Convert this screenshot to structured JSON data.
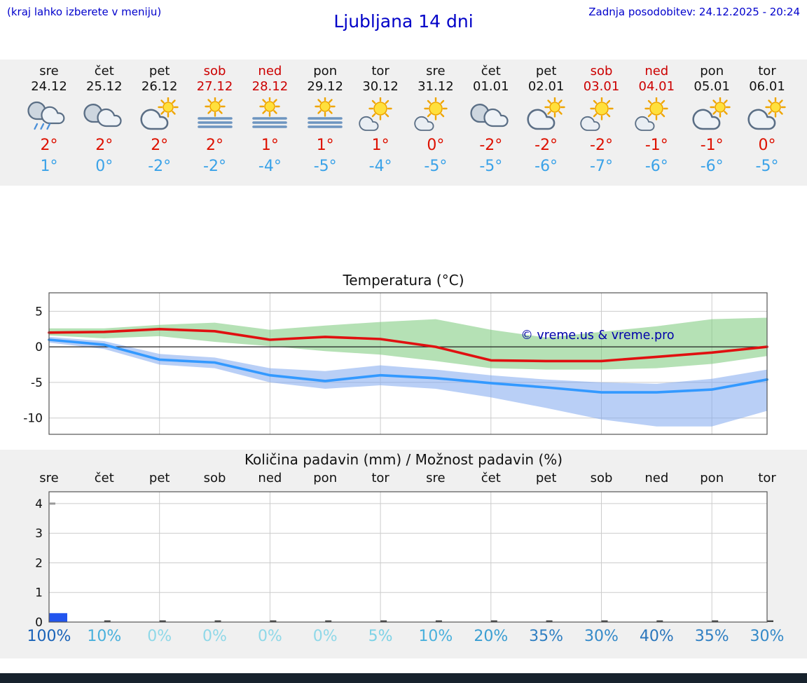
{
  "header": {
    "hint": "(kraj lahko izberete v meniju)",
    "title": "Ljubljana 14 dni",
    "last_update": "Zadnja posodobitev: 24.12.2025 - 20:24"
  },
  "colors": {
    "header_blue": "#0000cc",
    "weekend_red": "#cc0000",
    "weekday_black": "#111111",
    "tmax_red": "#dd1100",
    "tmin_blue": "#3aa2e8",
    "bar_blue": "#2255ee",
    "watermark_blue": "#0000aa"
  },
  "forecast_days": [
    {
      "day": "sre",
      "date": "24.12",
      "weekend": false,
      "icon": "rain",
      "tmax": "2°",
      "tmin": "1°"
    },
    {
      "day": "čet",
      "date": "25.12",
      "weekend": false,
      "icon": "cloudy",
      "tmax": "2°",
      "tmin": "0°"
    },
    {
      "day": "pet",
      "date": "26.12",
      "weekend": false,
      "icon": "partly",
      "tmax": "2°",
      "tmin": "-2°"
    },
    {
      "day": "sob",
      "date": "27.12",
      "weekend": true,
      "icon": "fog-sun",
      "tmax": "2°",
      "tmin": "-2°"
    },
    {
      "day": "ned",
      "date": "28.12",
      "weekend": true,
      "icon": "fog-sun",
      "tmax": "1°",
      "tmin": "-4°"
    },
    {
      "day": "pon",
      "date": "29.12",
      "weekend": false,
      "icon": "fog-sun",
      "tmax": "1°",
      "tmin": "-5°"
    },
    {
      "day": "tor",
      "date": "30.12",
      "weekend": false,
      "icon": "sun-cloud",
      "tmax": "1°",
      "tmin": "-4°"
    },
    {
      "day": "sre",
      "date": "31.12",
      "weekend": false,
      "icon": "sun-cloud",
      "tmax": "0°",
      "tmin": "-5°"
    },
    {
      "day": "čet",
      "date": "01.01",
      "weekend": false,
      "icon": "cloudy",
      "tmax": "-2°",
      "tmin": "-5°"
    },
    {
      "day": "pet",
      "date": "02.01",
      "weekend": false,
      "icon": "partly",
      "tmax": "-2°",
      "tmin": "-6°"
    },
    {
      "day": "sob",
      "date": "03.01",
      "weekend": true,
      "icon": "sun-cloud",
      "tmax": "-2°",
      "tmin": "-7°"
    },
    {
      "day": "ned",
      "date": "04.01",
      "weekend": true,
      "icon": "sun-cloud",
      "tmax": "-1°",
      "tmin": "-6°"
    },
    {
      "day": "pon",
      "date": "05.01",
      "weekend": false,
      "icon": "partly",
      "tmax": "-1°",
      "tmin": "-6°"
    },
    {
      "day": "tor",
      "date": "06.01",
      "weekend": false,
      "icon": "partly",
      "tmax": "0°",
      "tmin": "-5°"
    }
  ],
  "chart_data": [
    {
      "type": "line",
      "title": "Temperatura (°C)",
      "categories": [
        "sre",
        "čet",
        "pet",
        "sob",
        "ned",
        "pon",
        "tor",
        "sre",
        "čet",
        "pet",
        "sob",
        "ned",
        "pon",
        "tor"
      ],
      "series": [
        {
          "name": "max-temperature",
          "color": "#e01010",
          "values": [
            2,
            2.1,
            2.5,
            2.2,
            1,
            1.4,
            1.1,
            0,
            -1.9,
            -2,
            -2,
            -1.4,
            -0.8,
            0
          ]
        },
        {
          "name": "min-temperature",
          "color": "#3399ff",
          "values": [
            1,
            0.3,
            -1.8,
            -2.2,
            -4,
            -4.8,
            -4,
            -4.4,
            -5.1,
            -5.7,
            -6.4,
            -6.4,
            -6,
            -4.6
          ]
        }
      ],
      "bands": [
        {
          "name": "max-range",
          "color": "#79c879",
          "opacity": 0.55,
          "upper": [
            2.6,
            2.6,
            3.1,
            3.4,
            2.4,
            3,
            3.5,
            3.9,
            2.4,
            1.3,
            2.1,
            2.9,
            3.9,
            4.1
          ],
          "lower": [
            1.6,
            1.2,
            1.5,
            0.7,
            0.1,
            -0.6,
            -1.1,
            -2,
            -3,
            -3.2,
            -3.2,
            -3,
            -2.4,
            -1.3
          ]
        },
        {
          "name": "min-range",
          "color": "#7fa8ee",
          "opacity": 0.55,
          "upper": [
            1.4,
            0.8,
            -1,
            -1.5,
            -3,
            -3.4,
            -2.6,
            -3.2,
            -4,
            -4.6,
            -5,
            -5.2,
            -4.5,
            -3.2
          ],
          "lower": [
            0.6,
            -0.3,
            -2.5,
            -3,
            -5,
            -5.9,
            -5.4,
            -5.9,
            -7.1,
            -8.6,
            -10.2,
            -11.2,
            -11.2,
            -9
          ]
        }
      ],
      "ylim": [
        -12.3,
        7.6
      ],
      "yticks": [
        5,
        0,
        -5,
        -10
      ],
      "grid": true,
      "watermark": "© vreme.us & vreme.pro"
    },
    {
      "type": "bar",
      "title": "Količina padavin (mm) / Možnost padavin (%)",
      "categories": [
        "sre",
        "čet",
        "pet",
        "sob",
        "ned",
        "pon",
        "tor",
        "sre",
        "čet",
        "pet",
        "sob",
        "ned",
        "pon",
        "tor"
      ],
      "values": [
        0.3,
        0,
        0,
        0,
        0,
        0,
        0,
        0,
        0,
        0,
        0,
        0,
        0,
        0
      ],
      "bar_color": "#2255ee",
      "ylim": [
        0,
        4.4
      ],
      "yticks": [
        0,
        1,
        2,
        3,
        4
      ],
      "grid": true,
      "probabilities": [
        {
          "label": "100%",
          "color": "#1a63b8"
        },
        {
          "label": "10%",
          "color": "#49b0dc"
        },
        {
          "label": "0%",
          "color": "#8fd8e8"
        },
        {
          "label": "0%",
          "color": "#8fd8e8"
        },
        {
          "label": "0%",
          "color": "#8fd8e8"
        },
        {
          "label": "0%",
          "color": "#8fd8e8"
        },
        {
          "label": "5%",
          "color": "#7dd2e6"
        },
        {
          "label": "10%",
          "color": "#49b0dc"
        },
        {
          "label": "20%",
          "color": "#3a9ed2"
        },
        {
          "label": "35%",
          "color": "#2f7fc2"
        },
        {
          "label": "30%",
          "color": "#3389c8"
        },
        {
          "label": "40%",
          "color": "#2a76bc"
        },
        {
          "label": "35%",
          "color": "#2f7fc2"
        },
        {
          "label": "30%",
          "color": "#3389c8"
        }
      ]
    }
  ]
}
